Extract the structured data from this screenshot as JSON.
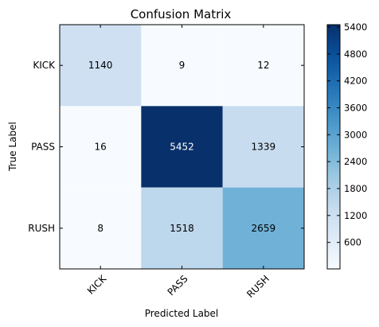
{
  "chart_data": {
    "type": "heatmap",
    "title": "Confusion Matrix",
    "xlabel": "Predicted Label",
    "ylabel": "True Label",
    "x_categories": [
      "KICK",
      "PASS",
      "RUSH"
    ],
    "y_categories": [
      "KICK",
      "PASS",
      "RUSH"
    ],
    "values": [
      [
        1140,
        9,
        12
      ],
      [
        16,
        5452,
        1339
      ],
      [
        8,
        1518,
        2659
      ]
    ],
    "colormap": "Blues",
    "colormap_low": "#f7fbff",
    "colormap_high": "#08306b",
    "color_range": [
      9,
      5452
    ],
    "colorbar_ticks": [
      600,
      1200,
      1800,
      2400,
      3000,
      3600,
      4200,
      4800,
      5400
    ],
    "x_tick_rotation": 45
  }
}
